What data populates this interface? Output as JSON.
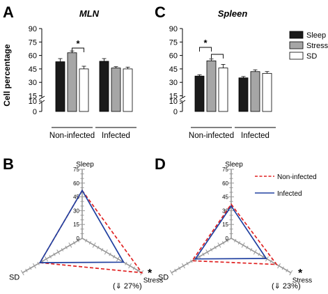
{
  "panel_letters": [
    "A",
    "B",
    "C",
    "D"
  ],
  "y_axis_title": "Cell percentage",
  "legend": {
    "bars": [
      {
        "label": "Sleep",
        "color": "#1a1a1a"
      },
      {
        "label": "Stress",
        "color": "#a6a6a6"
      },
      {
        "label": "SD",
        "color": "#ffffff"
      }
    ],
    "radar": [
      {
        "label": "Non-infected",
        "color": "#e02020",
        "style": "dashed"
      },
      {
        "label": "Infected",
        "color": "#2040a0",
        "style": "solid"
      }
    ]
  },
  "significance_mark": "*",
  "annotations": {
    "B": {
      "star": "*",
      "text": "(⇓ 27%)"
    },
    "D": {
      "star": "*",
      "text": "(⇓ 23%)"
    }
  },
  "chart_data": [
    {
      "panel": "A",
      "type": "bar",
      "title": "MLN",
      "ylabel": "Cell percentage",
      "ylim": [
        0,
        90
      ],
      "yticks": [
        "0",
        "10",
        "15",
        "30",
        "45",
        "60",
        "75",
        "90"
      ],
      "axis_break": true,
      "groups": [
        "Non-infected",
        "Infected"
      ],
      "series": [
        {
          "name": "Sleep",
          "values": [
            53,
            53.5
          ],
          "errors": [
            3.5,
            3
          ]
        },
        {
          "name": "Stress",
          "values": [
            63,
            46
          ],
          "errors": [
            2,
            1.5
          ]
        },
        {
          "name": "SD",
          "values": [
            45,
            45
          ],
          "errors": [
            3,
            2
          ]
        }
      ],
      "significance": [
        {
          "group": "Non-infected",
          "between": [
            "Stress",
            "SD"
          ],
          "mark": "*"
        }
      ]
    },
    {
      "panel": "C",
      "type": "bar",
      "title": "Spleen",
      "ylim": [
        0,
        90
      ],
      "yticks": [
        "0",
        "10",
        "15",
        "30",
        "45",
        "60",
        "75",
        "90"
      ],
      "axis_break": true,
      "groups": [
        "Non-infected",
        "Infected"
      ],
      "series": [
        {
          "name": "Sleep",
          "values": [
            37,
            35
          ],
          "errors": [
            1.5,
            1.5
          ]
        },
        {
          "name": "Stress",
          "values": [
            54,
            42
          ],
          "errors": [
            2,
            2
          ]
        },
        {
          "name": "SD",
          "values": [
            46,
            40
          ],
          "errors": [
            4,
            2
          ]
        }
      ],
      "significance": [
        {
          "group": "Non-infected",
          "between": [
            "Sleep",
            "Stress"
          ],
          "mark": "*"
        },
        {
          "group": "Non-infected",
          "between": [
            "Stress",
            "SD"
          ],
          "mark": ""
        }
      ]
    },
    {
      "panel": "B",
      "type": "radar",
      "axes": [
        "Sleep",
        "Stress",
        "SD"
      ],
      "ticks": [
        "0",
        "15",
        "30",
        "45",
        "60",
        "75"
      ],
      "rmax": 75,
      "series": [
        {
          "name": "Non-infected",
          "values": [
            52,
            75,
            53
          ]
        },
        {
          "name": "Infected",
          "values": [
            52,
            52,
            53
          ]
        }
      ]
    },
    {
      "panel": "D",
      "type": "radar",
      "axes": [
        "Sleep",
        "Stress",
        "SD"
      ],
      "ticks": [
        "0",
        "15",
        "30",
        "45",
        "60",
        "75"
      ],
      "rmax": 75,
      "series": [
        {
          "name": "Non-infected",
          "values": [
            37,
            57,
            49
          ]
        },
        {
          "name": "Infected",
          "values": [
            35,
            44,
            45
          ]
        }
      ]
    }
  ]
}
